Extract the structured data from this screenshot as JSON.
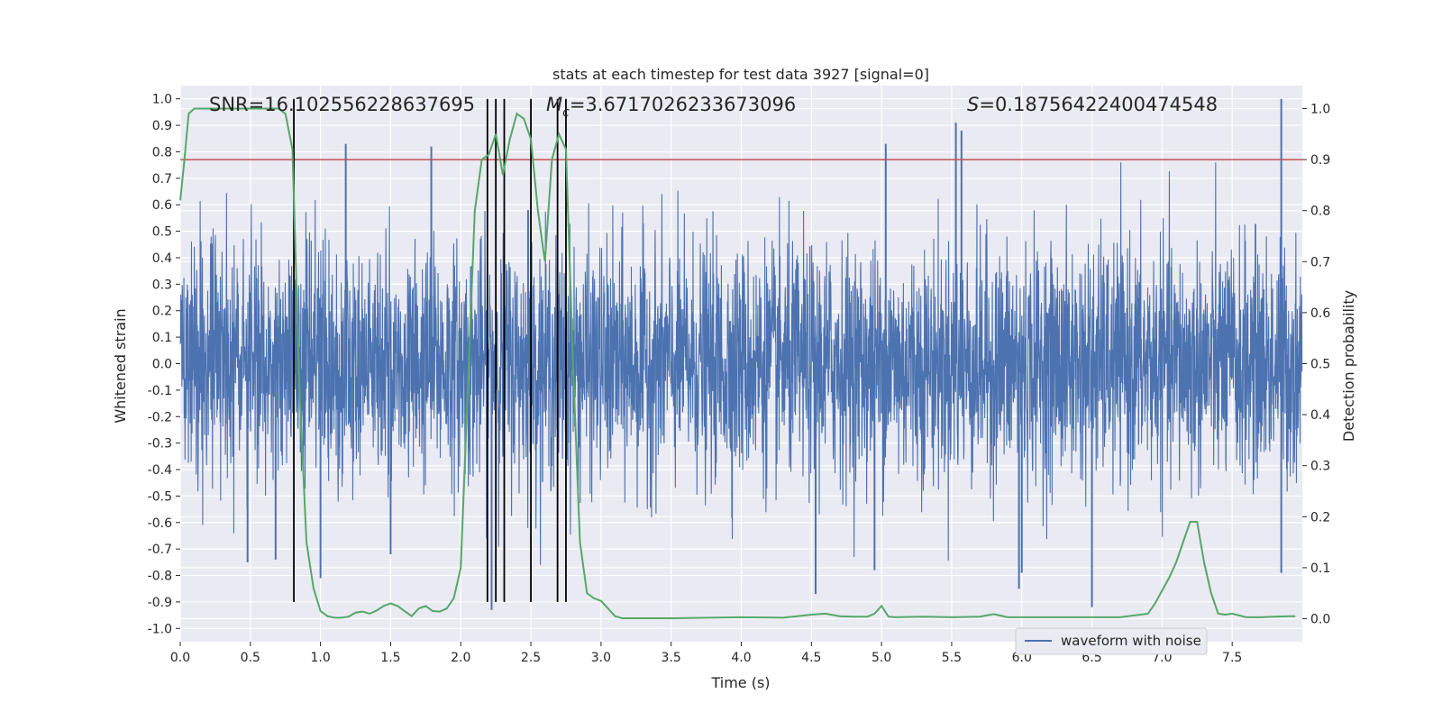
{
  "chart_data": {
    "type": "line",
    "title": "stats at each timestep for test data 3927 [signal=0]",
    "xlabel": "Time (s)",
    "ylabel": "Whitened strain",
    "y2label": "Detection probability",
    "xlim": [
      0.0,
      8.0
    ],
    "ylim": [
      -1.05,
      1.05
    ],
    "y2lim": [
      -0.045,
      1.045
    ],
    "x_ticks": [
      "0.0",
      "0.5",
      "1.0",
      "1.5",
      "2.0",
      "2.5",
      "3.0",
      "3.5",
      "4.0",
      "4.5",
      "5.0",
      "5.5",
      "6.0",
      "6.5",
      "7.0",
      "7.5"
    ],
    "y_ticks": [
      "1.0",
      "0.9",
      "0.8",
      "0.7",
      "0.6",
      "0.5",
      "0.4",
      "0.3",
      "0.2",
      "0.1",
      "0.0",
      "-0.1",
      "-0.2",
      "-0.3",
      "-0.4",
      "-0.5",
      "-0.6",
      "-0.7",
      "-0.8",
      "-0.9",
      "-1.0"
    ],
    "y2_ticks": [
      "1.0",
      "0.9",
      "0.8",
      "0.7",
      "0.6",
      "0.5",
      "0.4",
      "0.3",
      "0.2",
      "0.1",
      "0.0"
    ],
    "grid": true,
    "legend_position": "lower-right",
    "annotations": {
      "snr": "SNR=16.102556228637695",
      "mc_symbol": "M",
      "mc_sub": "c",
      "mc_value": "=3.6717026233673096",
      "s_symbol": "S",
      "s_value": "=0.18756422400474548"
    },
    "series": [
      {
        "name": "waveform with noise",
        "axis": "left",
        "color": "#4c72b0",
        "envelope": "dense noise, |y| mostly below 0.5, peaks reaching about ±0.8 and up to 1.0 near t=7.85",
        "spikes": [
          {
            "x": 1.18,
            "y": 0.83
          },
          {
            "x": 1.79,
            "y": 0.82
          },
          {
            "x": 5.03,
            "y": 0.83
          },
          {
            "x": 5.53,
            "y": 0.91
          },
          {
            "x": 5.57,
            "y": 0.88
          },
          {
            "x": 7.85,
            "y": 1.0
          },
          {
            "x": 2.22,
            "y": -0.93
          },
          {
            "x": 4.53,
            "y": -0.87
          },
          {
            "x": 5.98,
            "y": -0.85
          },
          {
            "x": 6.5,
            "y": -0.92
          },
          {
            "x": 1.0,
            "y": -0.81
          },
          {
            "x": 0.68,
            "y": -0.74
          },
          {
            "x": 0.48,
            "y": -0.75
          },
          {
            "x": 1.5,
            "y": -0.72
          },
          {
            "x": 2.48,
            "y": 0.58
          },
          {
            "x": 4.95,
            "y": -0.78
          },
          {
            "x": 6.0,
            "y": -0.79
          },
          {
            "x": 7.85,
            "y": -0.79
          }
        ]
      },
      {
        "name": "",
        "axis": "right",
        "color": "#55a868",
        "x": [
          0.0,
          0.03,
          0.06,
          0.1,
          0.2,
          0.3,
          0.4,
          0.5,
          0.6,
          0.7,
          0.75,
          0.8,
          0.85,
          0.9,
          0.95,
          1.0,
          1.05,
          1.1,
          1.15,
          1.2,
          1.25,
          1.3,
          1.35,
          1.4,
          1.45,
          1.5,
          1.55,
          1.6,
          1.65,
          1.7,
          1.75,
          1.8,
          1.85,
          1.9,
          1.95,
          2.0,
          2.05,
          2.1,
          2.15,
          2.2,
          2.25,
          2.3,
          2.35,
          2.4,
          2.45,
          2.5,
          2.55,
          2.6,
          2.65,
          2.7,
          2.75,
          2.8,
          2.85,
          2.9,
          2.95,
          3.0,
          3.05,
          3.1,
          3.15,
          3.2,
          3.5,
          4.0,
          4.3,
          4.5,
          4.6,
          4.7,
          4.8,
          4.9,
          4.95,
          5.0,
          5.05,
          5.1,
          5.3,
          5.5,
          5.7,
          5.8,
          5.9,
          6.0,
          6.3,
          6.5,
          6.7,
          6.9,
          6.95,
          7.0,
          7.05,
          7.1,
          7.15,
          7.2,
          7.25,
          7.3,
          7.35,
          7.4,
          7.45,
          7.5,
          7.6,
          7.7,
          7.8,
          7.9,
          7.95
        ],
        "y": [
          0.82,
          0.9,
          0.99,
          1.0,
          1.0,
          1.0,
          1.0,
          1.0,
          1.0,
          1.0,
          0.99,
          0.92,
          0.45,
          0.15,
          0.06,
          0.015,
          0.005,
          0.002,
          0.002,
          0.004,
          0.012,
          0.014,
          0.01,
          0.016,
          0.025,
          0.03,
          0.025,
          0.015,
          0.005,
          0.02,
          0.025,
          0.015,
          0.014,
          0.02,
          0.04,
          0.1,
          0.45,
          0.8,
          0.9,
          0.91,
          0.95,
          0.87,
          0.94,
          0.99,
          0.98,
          0.94,
          0.8,
          0.7,
          0.9,
          0.95,
          0.92,
          0.5,
          0.15,
          0.05,
          0.04,
          0.035,
          0.02,
          0.005,
          0.001,
          0.001,
          0.001,
          0.003,
          0.002,
          0.008,
          0.01,
          0.005,
          0.004,
          0.004,
          0.01,
          0.025,
          0.004,
          0.003,
          0.004,
          0.003,
          0.004,
          0.009,
          0.003,
          0.003,
          0.003,
          0.003,
          0.003,
          0.01,
          0.03,
          0.055,
          0.08,
          0.11,
          0.15,
          0.19,
          0.19,
          0.11,
          0.05,
          0.01,
          0.008,
          0.01,
          0.003,
          0.003,
          0.004,
          0.005,
          0.005
        ]
      },
      {
        "name": "",
        "axis": "right",
        "color": "#c44e52",
        "type": "threshold",
        "y": 0.9
      }
    ],
    "vlines": [
      0.81,
      2.19,
      2.25,
      2.31,
      2.5,
      2.69,
      2.75
    ]
  },
  "legend": {
    "label": "waveform with noise"
  }
}
